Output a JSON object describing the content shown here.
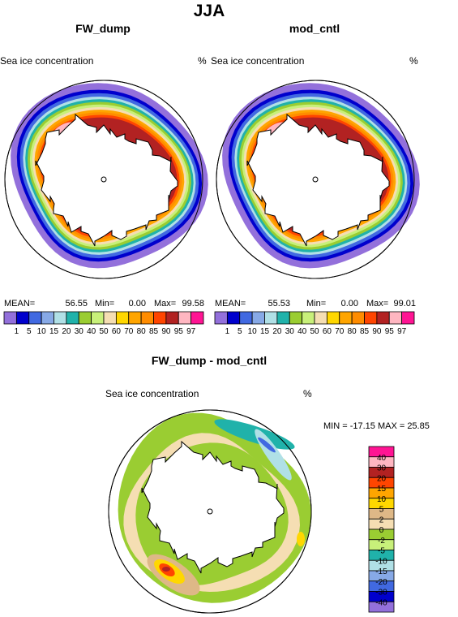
{
  "figure": {
    "title": "JJA",
    "panels": [
      {
        "title": "FW_dump",
        "left_label": "Sea ice concentration",
        "unit": "%",
        "stats": {
          "mean_label": "MEAN=",
          "mean": "56.55",
          "min_label": "Min=",
          "min": "0.00",
          "max_label": "Max=",
          "max": "99.58"
        }
      },
      {
        "title": "mod_cntl",
        "left_label": "Sea ice concentration",
        "unit": "%",
        "stats": {
          "mean_label": "MEAN=",
          "mean": "55.53",
          "min_label": "Min=",
          "min": "0.00",
          "max_label": "Max=",
          "max": "99.01"
        }
      },
      {
        "title": "FW_dump - mod_cntl",
        "left_label": "Sea ice concentration",
        "unit": "%",
        "stats_text": "MIN = -17.15  MAX =  25.85"
      }
    ]
  },
  "colorbar_abs": {
    "labels": [
      "1",
      "5",
      "10",
      "15",
      "20",
      "30",
      "40",
      "50",
      "60",
      "70",
      "80",
      "85",
      "90",
      "95",
      "97"
    ],
    "colors": [
      "#9370db",
      "#0000cd",
      "#4169e1",
      "#87a9e6",
      "#b0e0e6",
      "#20b2aa",
      "#9acd32",
      "#c8f07a",
      "#f5deb3",
      "#ffd700",
      "#ffa500",
      "#ff8c00",
      "#ff4500",
      "#b22222",
      "#ffb6c1",
      "#ff1493"
    ]
  },
  "colorbar_diff": {
    "labels": [
      "40",
      "30",
      "20",
      "15",
      "10",
      "5",
      "2",
      "0",
      "-2",
      "-5",
      "-10",
      "-15",
      "-20",
      "-30",
      "-40"
    ],
    "colors": [
      "#ff1493",
      "#ffb6c1",
      "#b22222",
      "#ff4500",
      "#ffa500",
      "#ffd700",
      "#deb887",
      "#f5deb3",
      "#9acd32",
      "#c8f07a",
      "#20b2aa",
      "#b0e0e6",
      "#87a9e6",
      "#4169e1",
      "#0000cd",
      "#9370db"
    ]
  },
  "chart_data": [
    {
      "type": "heatmap",
      "title": "FW_dump",
      "variable": "Sea ice concentration",
      "unit": "%",
      "levels": [
        1,
        5,
        10,
        15,
        20,
        30,
        40,
        50,
        60,
        70,
        80,
        85,
        90,
        95,
        97
      ],
      "mean": 56.55,
      "min": 0.0,
      "max": 99.58
    },
    {
      "type": "heatmap",
      "title": "mod_cntl",
      "variable": "Sea ice concentration",
      "unit": "%",
      "levels": [
        1,
        5,
        10,
        15,
        20,
        30,
        40,
        50,
        60,
        70,
        80,
        85,
        90,
        95,
        97
      ],
      "mean": 55.53,
      "min": 0.0,
      "max": 99.01
    },
    {
      "type": "heatmap",
      "title": "FW_dump - mod_cntl",
      "variable": "Sea ice concentration",
      "unit": "%",
      "levels": [
        -40,
        -30,
        -20,
        -15,
        -10,
        -5,
        -2,
        0,
        2,
        5,
        10,
        15,
        20,
        30,
        40
      ],
      "min": -17.15,
      "max": 25.85
    }
  ]
}
